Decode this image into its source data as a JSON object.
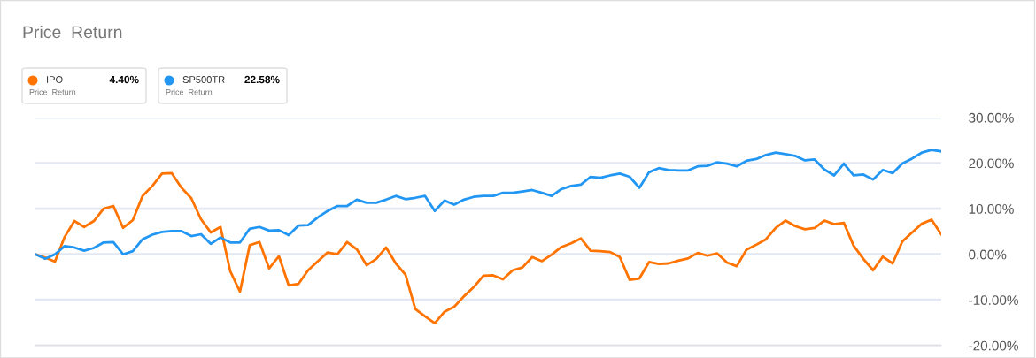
{
  "chart_data": {
    "type": "line",
    "title": "Price  Return",
    "annotations": [
      "4.40%",
      "Price  Return",
      "22.58%",
      "Price  Return"
    ],
    "categories": [
      null,
      null,
      null,
      null,
      null,
      null,
      null,
      null,
      null,
      null,
      null,
      null,
      null,
      null,
      null,
      null,
      null,
      null,
      null,
      null,
      null,
      null,
      null,
      null,
      null,
      null,
      null,
      null,
      null,
      null,
      null,
      null,
      null,
      null,
      null,
      null,
      null,
      null,
      null,
      null,
      null,
      null,
      null,
      null,
      null,
      null,
      null,
      null,
      null,
      null,
      null,
      null,
      null,
      null,
      null,
      null,
      null,
      null,
      null,
      null,
      null,
      null,
      null,
      null,
      null,
      null,
      null,
      null,
      null,
      null,
      null,
      null,
      null,
      null,
      null,
      null,
      null,
      null,
      null,
      null,
      null,
      null,
      null,
      null,
      null,
      null,
      null,
      null,
      null,
      null,
      null,
      null,
      null,
      null
    ],
    "tick_labels": "y",
    "ylim": [
      -20,
      30
    ],
    "yticks": [
      {
        "value": -20,
        "label": "-20.00%"
      },
      {
        "value": -10,
        "label": "-10.00%"
      },
      {
        "value": 0,
        "label": "0.00%"
      },
      {
        "value": 10,
        "label": "10.00%"
      },
      {
        "value": 20,
        "label": "20.00%"
      },
      {
        "value": 30,
        "label": "30.00%"
      }
    ],
    "grid": "y",
    "legend": "top left",
    "marker": "none",
    "line_style": "solid",
    "series": [
      {
        "name": "IPO",
        "color": "#ff7300",
        "values": [
          0,
          -0.7,
          -1.6,
          3.8,
          7.3,
          6.0,
          7.3,
          10.0,
          10.6,
          5.8,
          7.5,
          12.8,
          15.0,
          17.7,
          17.8,
          14.6,
          12.3,
          7.7,
          4.8,
          6.0,
          -3.7,
          -8.2,
          2.0,
          2.7,
          -3.1,
          -0.4,
          -6.8,
          -6.5,
          -3.5,
          -1.5,
          0.4,
          0,
          2.7,
          1.1,
          -2.4,
          -1.0,
          1.5,
          -2.0,
          -4.5,
          -12.0,
          -13.6,
          -15.1,
          -12.6,
          -11.5,
          -9.2,
          -7.2,
          -4.7,
          -4.6,
          -5.5,
          -3.5,
          -2.9,
          -0.6,
          -1.5,
          -0.1,
          1.6,
          2.4,
          3.5,
          0.8,
          0.7,
          0.5,
          -0.6,
          -5.6,
          -5.3,
          -1.7,
          -2.1,
          -2.0,
          -1.4,
          -0.9,
          0.3,
          -0.3,
          0.2,
          -1.8,
          -2.6,
          1.0,
          2.1,
          3.3,
          5.8,
          7.4,
          6.2,
          5.5,
          5.8,
          7.4,
          6.6,
          6.9,
          1.9,
          -1.0,
          -3.5,
          -0.5,
          -2.0,
          2.8,
          4.8,
          6.7,
          7.6,
          4.4
        ]
      },
      {
        "name": "SP500TR",
        "color": "#2196f3",
        "values": [
          0,
          -1.0,
          0,
          1.8,
          1.5,
          0.8,
          1.4,
          2.6,
          2.7,
          0,
          0.7,
          3.3,
          4.3,
          4.9,
          5.1,
          5.1,
          4.0,
          4.4,
          2.3,
          3.7,
          2.6,
          2.6,
          5.6,
          6.0,
          5.2,
          5.3,
          4.2,
          6.3,
          6.4,
          8.1,
          9.5,
          10.6,
          10.6,
          12.0,
          11.3,
          11.3,
          12.0,
          12.8,
          12.1,
          12.4,
          12.8,
          9.5,
          11.8,
          10.9,
          12.0,
          12.6,
          12.8,
          12.8,
          13.5,
          13.5,
          13.8,
          14.1,
          13.5,
          12.8,
          14.3,
          15.0,
          15.3,
          17.0,
          16.8,
          17.3,
          17.7,
          17.0,
          14.6,
          18.0,
          18.9,
          18.5,
          18.4,
          18.4,
          19.3,
          19.4,
          20.2,
          19.9,
          19.3,
          20.5,
          20.9,
          21.8,
          22.3,
          22.0,
          21.6,
          20.6,
          20.8,
          18.6,
          17.3,
          19.9,
          17.3,
          17.5,
          16.4,
          18.5,
          17.8,
          19.9,
          21.0,
          22.3,
          22.9,
          22.58
        ]
      }
    ]
  }
}
